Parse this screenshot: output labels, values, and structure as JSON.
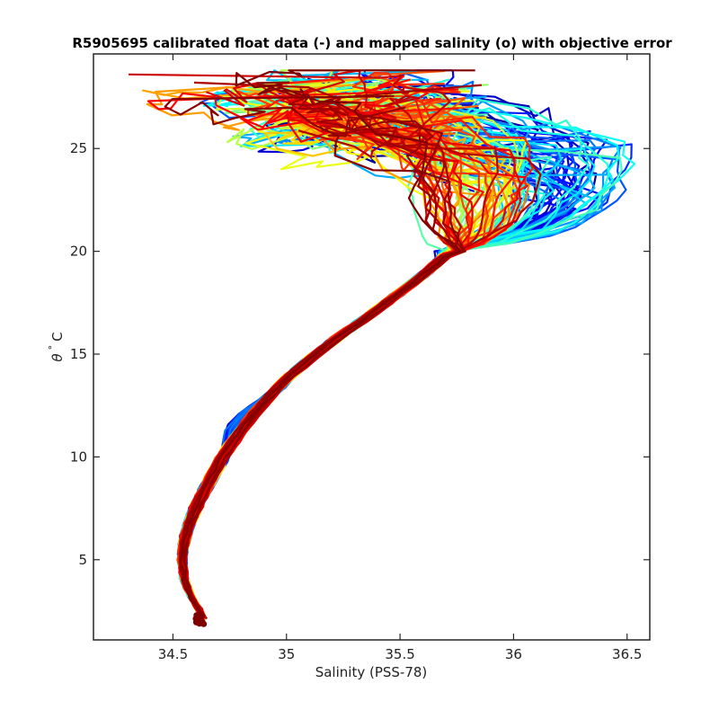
{
  "chart_data": {
    "type": "line",
    "title": "R5905695 calibrated float data (-) and mapped salinity (o) with objective error",
    "xlabel": "Salinity (PSS-78)",
    "ylabel_theta": "θ",
    "ylabel_degree": "°",
    "ylabel_unit": "C",
    "xlim": [
      34.15,
      36.6
    ],
    "ylim": [
      1.1,
      29.6
    ],
    "x_ticks": [
      34.5,
      35,
      35.5,
      36,
      36.5
    ],
    "x_tick_labels": [
      "34.5",
      "35",
      "35.5",
      "36",
      "36.5"
    ],
    "y_ticks": [
      5,
      10,
      15,
      20,
      25
    ],
    "y_tick_labels": [
      "5",
      "10",
      "15",
      "20",
      "25"
    ],
    "grid": false,
    "colormap": "jet",
    "colormap_colors": [
      "#00008f",
      "#0000ff",
      "#0080ff",
      "#00ffff",
      "#80ff80",
      "#ffff00",
      "#ff8000",
      "#ff0000",
      "#800000"
    ],
    "profile_count": 120,
    "common_curve": {
      "salinity": [
        34.64,
        34.62,
        34.58,
        34.55,
        34.54,
        34.55,
        34.58,
        34.62,
        34.67,
        34.72,
        34.78,
        34.85,
        34.93,
        35.02,
        35.13,
        35.25,
        35.38,
        35.5,
        35.62,
        35.72
      ],
      "theta": [
        2.1,
        2.5,
        3.2,
        4.0,
        5.0,
        6.0,
        7.0,
        8.0,
        9.0,
        10.0,
        11.0,
        12.0,
        13.0,
        14.0,
        15.0,
        16.0,
        17.0,
        18.0,
        19.0,
        20.0
      ]
    },
    "upper_layer": {
      "theta_range": [
        20,
        28.8
      ],
      "salinity_range": [
        34.22,
        36.5
      ],
      "surface_max_theta": 28.8
    }
  }
}
